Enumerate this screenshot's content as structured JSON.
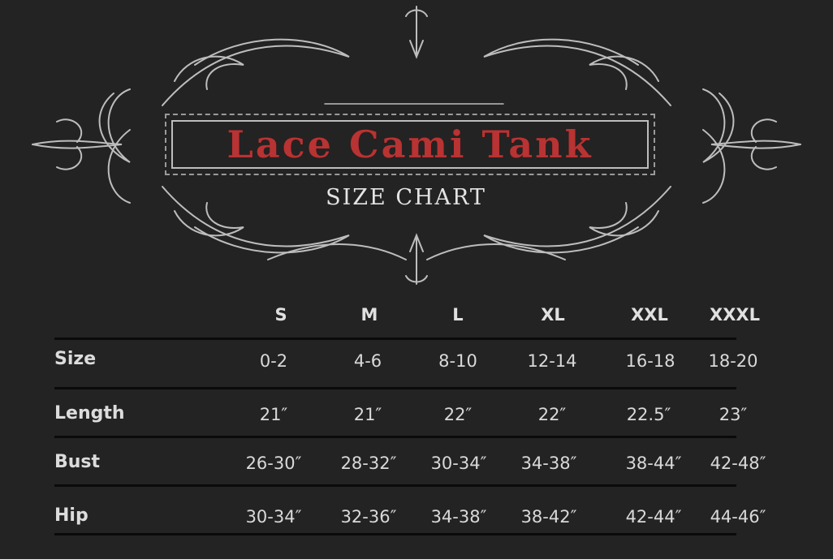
{
  "title": "Lace Cami Tank",
  "subtitle": "SIZE CHART",
  "colors": {
    "background": "#232323",
    "title": "#b83333",
    "text": "#d9d9d9",
    "rules": "#0a0a0a"
  },
  "table": {
    "columns": [
      "S",
      "M",
      "L",
      "XL",
      "XXL",
      "XXXL"
    ],
    "rows": [
      {
        "label": "Size",
        "values": [
          "0-2",
          "4-6",
          "8-10",
          "12-14",
          "16-18",
          "18-20"
        ]
      },
      {
        "label": "Length",
        "values": [
          "21″",
          "21″",
          "22″",
          "22″",
          "22.5″",
          "23″"
        ]
      },
      {
        "label": "Bust",
        "values": [
          "26-30″",
          "28-32″",
          "30-34″",
          "34-38″",
          "38-44″",
          "42-48″"
        ]
      },
      {
        "label": "Hip",
        "values": [
          "30-34″",
          "32-36″",
          "34-38″",
          "38-42″",
          "42-44″",
          "44-46″"
        ]
      }
    ]
  }
}
